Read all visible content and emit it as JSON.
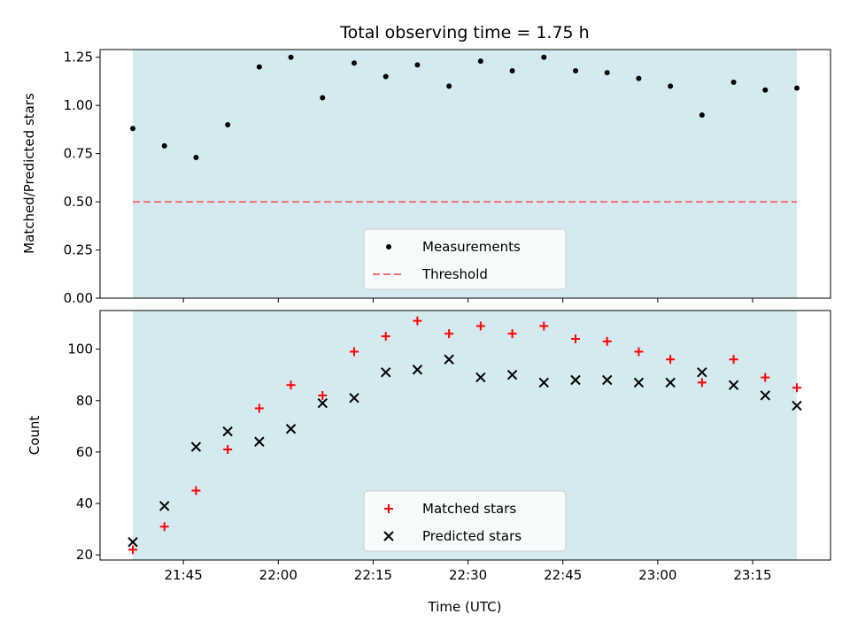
{
  "chart_data": [
    {
      "type": "scatter",
      "title": "Total observing time = 1.75 h",
      "xlabel": "",
      "ylabel": "Matched/Predicted stars",
      "ylim": [
        0,
        1.29
      ],
      "yticks": [
        "0.00",
        "0.25",
        "0.50",
        "0.75",
        "1.00",
        "1.25"
      ],
      "observing_window": [
        "21:37",
        "23:22"
      ],
      "window_color": "#d4eaf0",
      "series": [
        {
          "name": "Measurements",
          "marker": "dot",
          "color": "#000000",
          "x": [
            "21:37",
            "21:42",
            "21:47",
            "21:52",
            "21:57",
            "22:02",
            "22:07",
            "22:12",
            "22:17",
            "22:22",
            "22:27",
            "22:32",
            "22:37",
            "22:42",
            "22:47",
            "22:52",
            "22:57",
            "23:02",
            "23:07",
            "23:12",
            "23:17",
            "23:22"
          ],
          "y": [
            0.88,
            0.79,
            0.73,
            0.9,
            1.2,
            1.25,
            1.04,
            1.22,
            1.15,
            1.21,
            1.1,
            1.23,
            1.18,
            1.25,
            1.18,
            1.17,
            1.14,
            1.1,
            0.95,
            1.12,
            1.08,
            1.09
          ]
        },
        {
          "name": "Threshold",
          "marker": "dashed-line",
          "color": "#f07070",
          "y": 0.5
        }
      ],
      "legend_position": "lower center"
    },
    {
      "type": "scatter",
      "title": "",
      "xlabel": "Time (UTC)",
      "ylabel": "Count",
      "ylim": [
        18,
        115
      ],
      "yticks": [
        "20",
        "40",
        "60",
        "80",
        "100"
      ],
      "xticks": [
        "21:45",
        "22:00",
        "22:15",
        "22:30",
        "22:45",
        "23:00",
        "23:15"
      ],
      "observing_window": [
        "21:37",
        "23:22"
      ],
      "window_color": "#d4eaf0",
      "series": [
        {
          "name": "Matched stars",
          "marker": "plus",
          "color": "#ff0000",
          "x": [
            "21:37",
            "21:42",
            "21:47",
            "21:52",
            "21:57",
            "22:02",
            "22:07",
            "22:12",
            "22:17",
            "22:22",
            "22:27",
            "22:32",
            "22:37",
            "22:42",
            "22:47",
            "22:52",
            "22:57",
            "23:02",
            "23:07",
            "23:12",
            "23:17",
            "23:22"
          ],
          "y": [
            22,
            31,
            45,
            61,
            77,
            86,
            82,
            99,
            105,
            111,
            106,
            109,
            106,
            109,
            104,
            103,
            99,
            96,
            87,
            96,
            89,
            85
          ]
        },
        {
          "name": "Predicted stars",
          "marker": "x",
          "color": "#000000",
          "x": [
            "21:37",
            "21:42",
            "21:47",
            "21:52",
            "21:57",
            "22:02",
            "22:07",
            "22:12",
            "22:17",
            "22:22",
            "22:27",
            "22:32",
            "22:37",
            "22:42",
            "22:47",
            "22:52",
            "22:57",
            "23:02",
            "23:07",
            "23:12",
            "23:17",
            "23:22"
          ],
          "y": [
            25,
            39,
            62,
            68,
            64,
            69,
            79,
            81,
            91,
            92,
            96,
            89,
            90,
            87,
            88,
            88,
            87,
            87,
            91,
            86,
            82,
            78
          ]
        }
      ],
      "legend_position": "lower center"
    }
  ]
}
